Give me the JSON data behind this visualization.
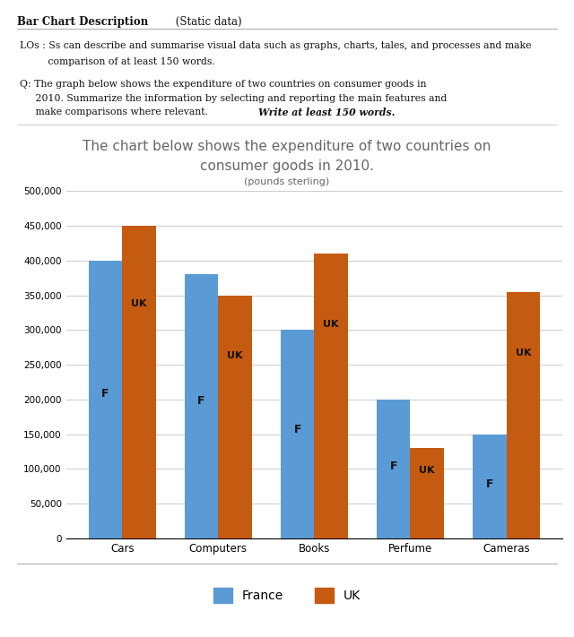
{
  "header_bold": "Bar Chart Description",
  "header_normal": " (Static data)",
  "lo_line1": "LOs : Ss can describe and summarise visual data such as graphs, charts, tales, and processes and make",
  "lo_line2": "         comparison of at least 150 words.",
  "q_line1": "Q: The graph below shows the expenditure of two countries on consumer goods in",
  "q_line2": "     2010. Summarize the information by selecting and reporting the main features and",
  "q_line3": "     make comparisons where relevant. ",
  "q_bold": "Write at least 150 words.",
  "chart_title_line1": "The chart below shows the expenditure of two countries on",
  "chart_title_line2": "consumer goods in 2010.",
  "chart_subtitle": "(pounds sterling)",
  "categories": [
    "Cars",
    "Computers",
    "Books",
    "Perfume",
    "Cameras"
  ],
  "france_values": [
    400000,
    380000,
    300000,
    200000,
    150000
  ],
  "uk_values": [
    450000,
    350000,
    410000,
    130000,
    355000
  ],
  "france_color": "#5B9BD5",
  "uk_color": "#C55A11",
  "bar_label_france": "F",
  "bar_label_uk": "UK",
  "ylim": [
    0,
    500000
  ],
  "yticks": [
    0,
    50000,
    100000,
    150000,
    200000,
    250000,
    300000,
    350000,
    400000,
    450000,
    500000
  ],
  "legend_france": "France",
  "legend_uk": "UK",
  "background_color": "#ffffff",
  "grid_color": "#cccccc",
  "title_color": "#666666",
  "text_color": "#111111"
}
